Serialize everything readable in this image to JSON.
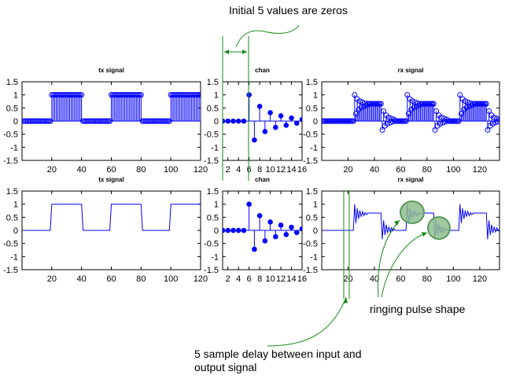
{
  "chart_data": [
    {
      "type": "stem",
      "title": "tx signal",
      "xlim": [
        0,
        120
      ],
      "ylim": [
        -1.5,
        1.5
      ],
      "xticks": [
        20,
        40,
        60,
        80,
        100,
        120
      ],
      "yticks": [
        -1.5,
        -1,
        -0.5,
        0,
        0.5,
        1,
        1.5
      ],
      "signal": "square",
      "period": 40,
      "high_from": 20,
      "high_to": 40,
      "n_points": 120,
      "marker": "open-circle",
      "color": "#0000ff"
    },
    {
      "type": "stem",
      "title": "chan",
      "xlim": [
        1,
        16
      ],
      "ylim": [
        -1.5,
        1.5
      ],
      "xticks": [
        2,
        4,
        6,
        8,
        10,
        12,
        14,
        16
      ],
      "yticks": [
        -1.5,
        -1,
        -0.5,
        0,
        0.5,
        1,
        1.5
      ],
      "x": [
        1,
        2,
        3,
        4,
        5,
        6,
        7,
        8,
        9,
        10,
        11,
        12,
        13,
        14,
        15,
        16
      ],
      "values": [
        0,
        0,
        0,
        0,
        0,
        1,
        -0.72,
        0.56,
        -0.4,
        0.32,
        -0.24,
        0.2,
        -0.16,
        0.12,
        -0.08,
        0.06
      ],
      "marker": "filled-circle",
      "color": "#0000ff"
    },
    {
      "type": "stem",
      "title": "rx signal",
      "xlim": [
        0,
        135
      ],
      "ylim": [
        -1.5,
        1.5
      ],
      "xticks": [
        20,
        40,
        60,
        80,
        100,
        120
      ],
      "yticks": [
        -1.5,
        -1,
        -0.5,
        0,
        0.5,
        1,
        1.5
      ],
      "signal": "convolution",
      "delay": 5,
      "n_points": 135,
      "marker": "open-circle",
      "color": "#0000ff"
    },
    {
      "type": "line",
      "title": "tx signal",
      "xlim": [
        0,
        120
      ],
      "ylim": [
        -1.5,
        1.5
      ],
      "xticks": [
        20,
        40,
        60,
        80,
        100,
        120
      ],
      "yticks": [
        -1.5,
        -1,
        -0.5,
        0,
        0.5,
        1,
        1.5
      ],
      "signal": "square",
      "period": 40,
      "high_from": 20,
      "high_to": 40,
      "n_points": 120,
      "color": "#0000ff"
    },
    {
      "type": "stem",
      "title": "chan",
      "xlim": [
        1,
        16
      ],
      "ylim": [
        -1.5,
        1.5
      ],
      "xticks": [
        2,
        4,
        6,
        8,
        10,
        12,
        14,
        16
      ],
      "yticks": [
        -1.5,
        -1,
        -0.5,
        0,
        0.5,
        1,
        1.5
      ],
      "x": [
        1,
        2,
        3,
        4,
        5,
        6,
        7,
        8,
        9,
        10,
        11,
        12,
        13,
        14,
        15,
        16
      ],
      "values": [
        0,
        0,
        0,
        0,
        0,
        1,
        -0.72,
        0.56,
        -0.4,
        0.32,
        -0.24,
        0.2,
        -0.16,
        0.12,
        -0.08,
        0.06
      ],
      "marker": "filled-circle",
      "color": "#0000ff"
    },
    {
      "type": "line",
      "title": "rx signal",
      "xlim": [
        0,
        135
      ],
      "ylim": [
        -1.5,
        1.5
      ],
      "xticks": [
        20,
        40,
        60,
        80,
        100,
        120
      ],
      "yticks": [
        -1.5,
        -1,
        -0.5,
        0,
        0.5,
        1,
        1.5
      ],
      "signal": "convolution",
      "delay": 5,
      "n_points": 135,
      "color": "#0000ff"
    }
  ],
  "annotations": {
    "initial_zeros": "Initial 5 values are zeros",
    "ringing": "ringing pulse shape",
    "delay_line1": "5 sample delay between input and",
    "delay_line2": "output signal"
  },
  "colors": {
    "annotation": "#1a8a1a",
    "highlight_fill": "#8fbf8f",
    "highlight_stroke": "#5a9a5a",
    "signal": "#0000ff"
  }
}
